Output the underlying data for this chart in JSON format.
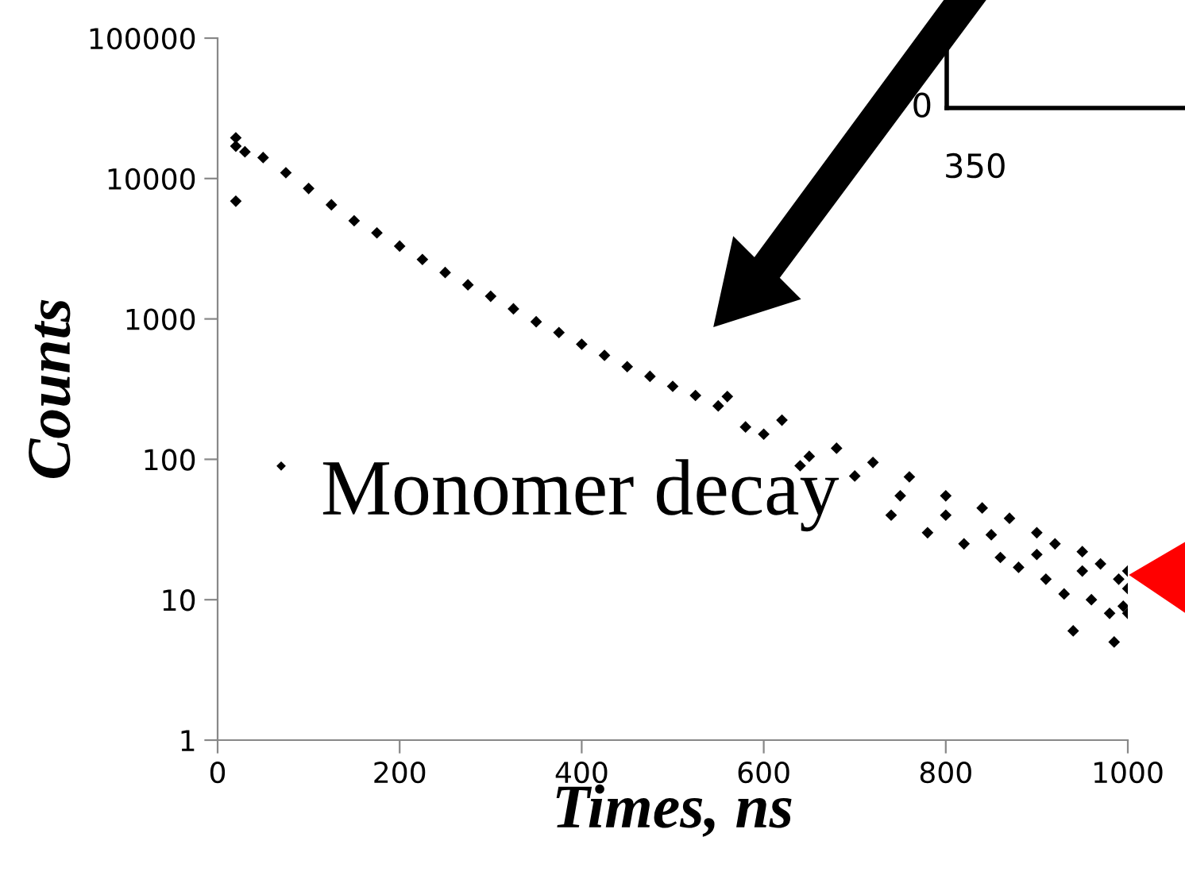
{
  "chart_data": [
    {
      "type": "scatter",
      "xlabel": "Times, ns",
      "ylabel": "Counts",
      "log": "y",
      "xlim": [
        0,
        1000
      ],
      "xticks": [
        0,
        200,
        400,
        600,
        800,
        1000
      ],
      "ylim": [
        1,
        100000
      ],
      "yticks": [
        1,
        10,
        100,
        1000,
        10000,
        100000
      ],
      "grid": false,
      "legend": "left",
      "marker": "diamond",
      "series": [
        {
          "name": "Monomer decay",
          "color": "#000000",
          "x": [
            20,
            20,
            20,
            30,
            50,
            75,
            100,
            125,
            150,
            175,
            200,
            225,
            250,
            275,
            300,
            325,
            350,
            375,
            400,
            425,
            450,
            475,
            500,
            525,
            550,
            560,
            580,
            600,
            620,
            640,
            650,
            680,
            700,
            720,
            740,
            750,
            760,
            780,
            800,
            800,
            820,
            840,
            850,
            860,
            870,
            880,
            900,
            900,
            910,
            920,
            930,
            940,
            950,
            950,
            960,
            970,
            980,
            985,
            990,
            995,
            1000,
            1000,
            1000
          ],
          "values": [
            17000,
            19500,
            6900,
            15500,
            14100,
            11000,
            8500,
            6500,
            5000,
            4100,
            3300,
            2650,
            2140,
            1750,
            1450,
            1180,
            955,
            800,
            660,
            550,
            457,
            390,
            331,
            285,
            240,
            280,
            170,
            151,
            190,
            90,
            105,
            120,
            76,
            95,
            40,
            55,
            75,
            30,
            40,
            55,
            25,
            45,
            29,
            20,
            38,
            17,
            21,
            30,
            14,
            25,
            11,
            6,
            16,
            22,
            10,
            18,
            8,
            5,
            14,
            9,
            12,
            8,
            16
          ]
        }
      ]
    },
    {
      "type": "other",
      "annotations": [
        "0",
        "350"
      ]
    }
  ]
}
